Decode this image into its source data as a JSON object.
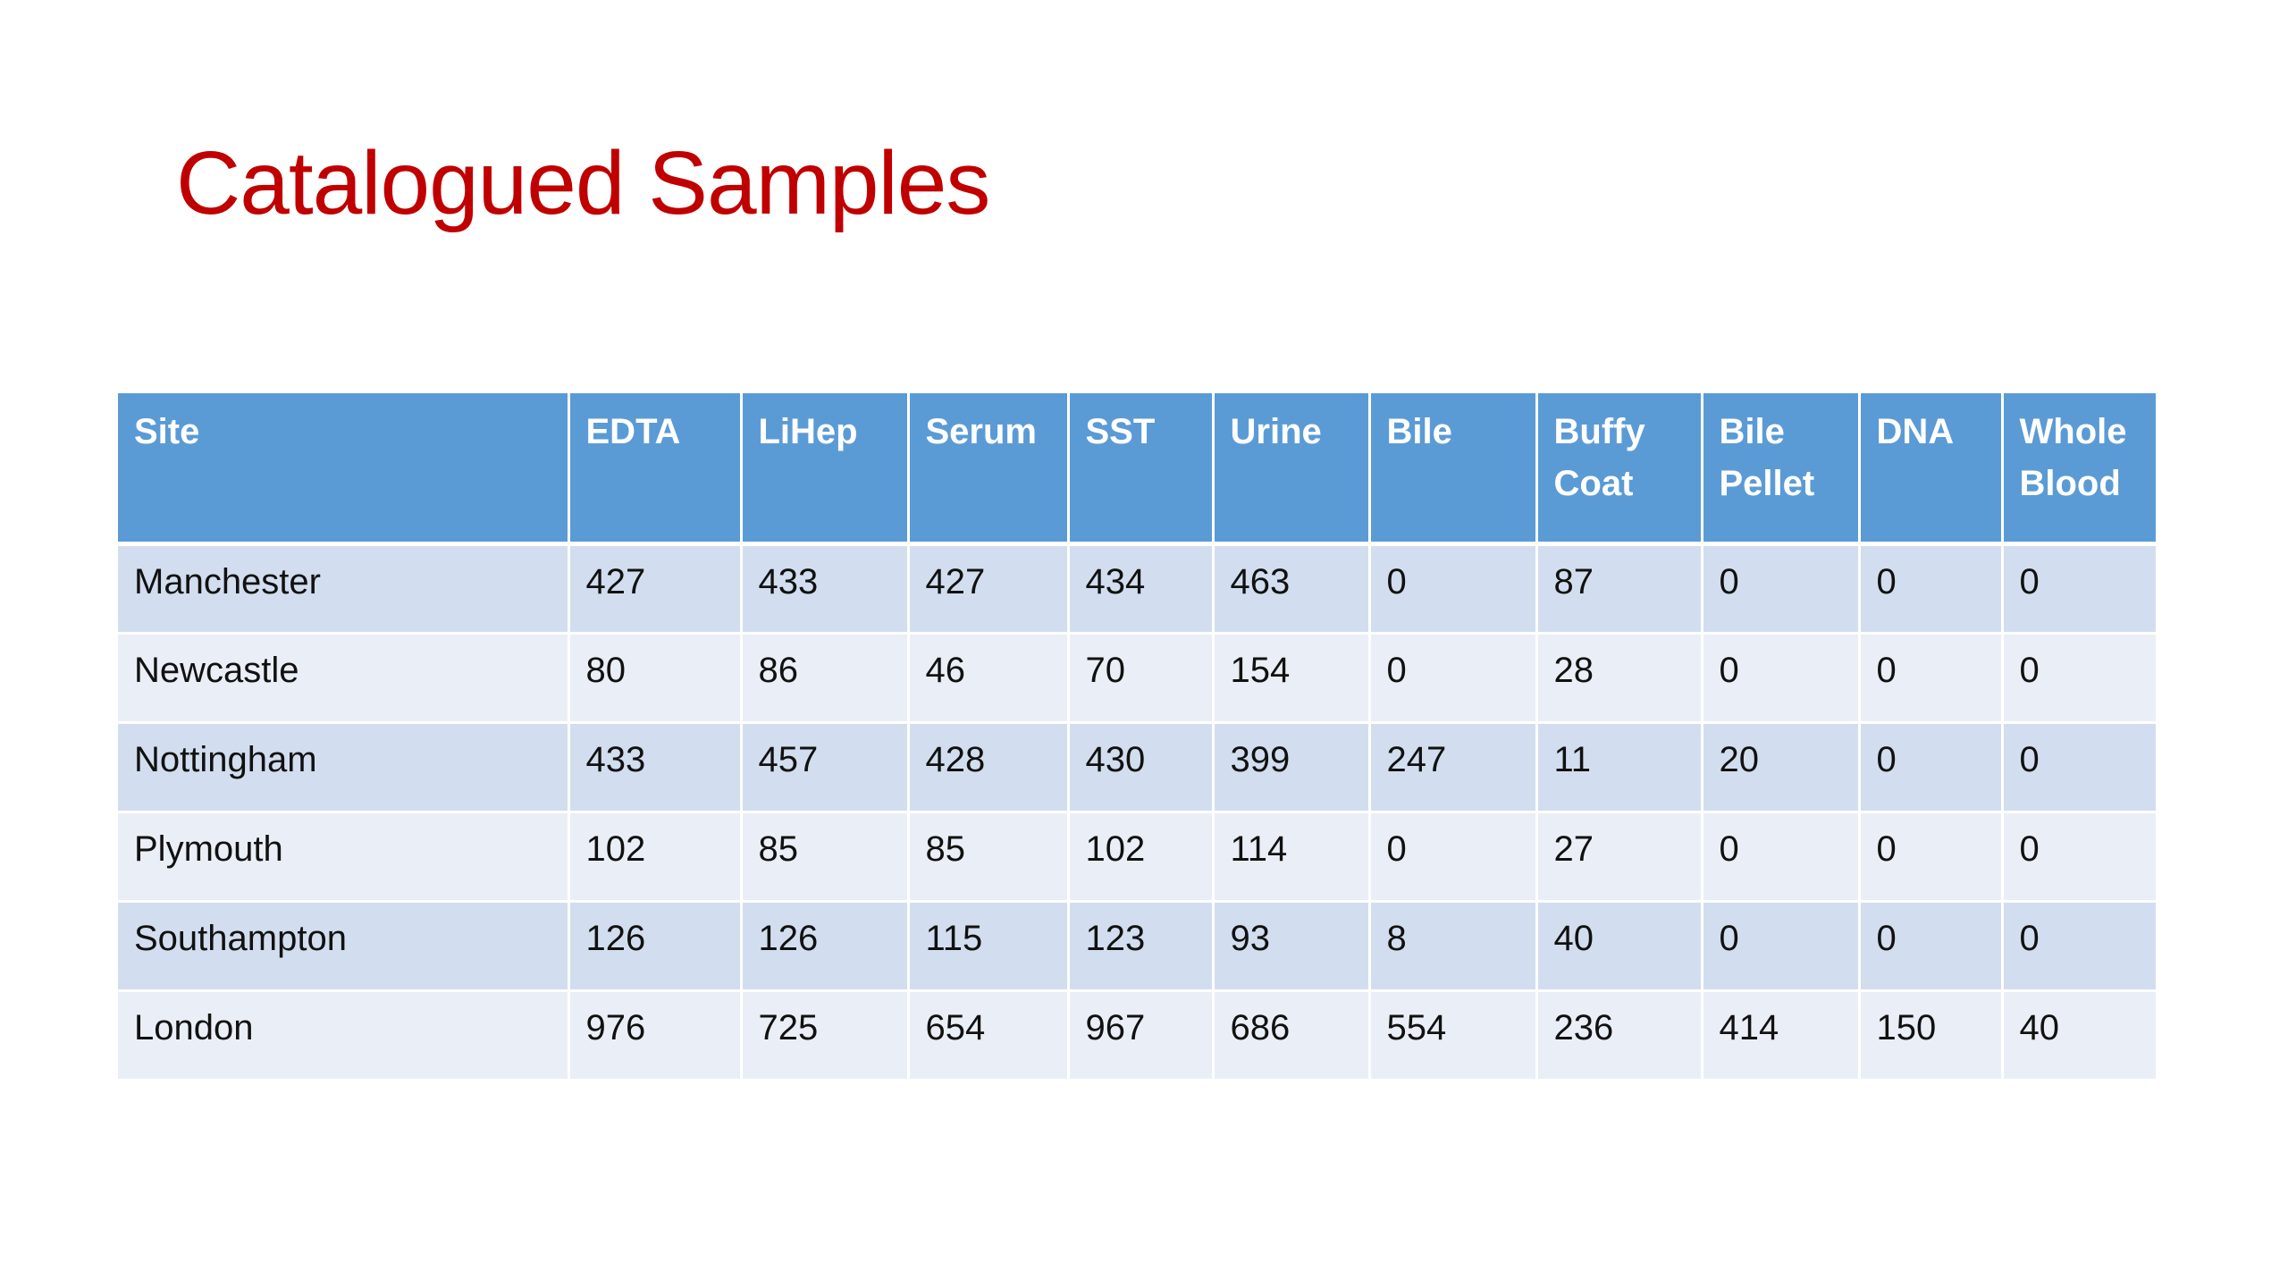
{
  "slide": {
    "title": "Catalogued Samples"
  },
  "table": {
    "headers": [
      "Site",
      "EDTA",
      "LiHep",
      "Serum",
      "SST",
      "Urine",
      "Bile",
      "Buffy Coat",
      "Bile Pellet",
      "DNA",
      "Whole Blood"
    ],
    "rows": [
      [
        "Manchester",
        "427",
        "433",
        "427",
        "434",
        "463",
        "0",
        "87",
        "0",
        "0",
        "0"
      ],
      [
        "Newcastle",
        "80",
        "86",
        "46",
        "70",
        "154",
        "0",
        "28",
        "0",
        "0",
        "0"
      ],
      [
        "Nottingham",
        "433",
        "457",
        "428",
        "430",
        "399",
        "247",
        "11",
        "20",
        "0",
        "0"
      ],
      [
        "Plymouth",
        "102",
        "85",
        "85",
        "102",
        "114",
        "0",
        "27",
        "0",
        "0",
        "0"
      ],
      [
        "Southampton",
        "126",
        "126",
        "115",
        "123",
        "93",
        "8",
        "40",
        "0",
        "0",
        "0"
      ],
      [
        "London",
        "976",
        "725",
        "654",
        "967",
        "686",
        "554",
        "236",
        "414",
        "150",
        "40"
      ]
    ]
  },
  "colors": {
    "title": "#C00000",
    "header_bg": "#5B9BD5",
    "row_band_dark": "#D2DEEF",
    "row_band_light": "#EAEFF7"
  }
}
